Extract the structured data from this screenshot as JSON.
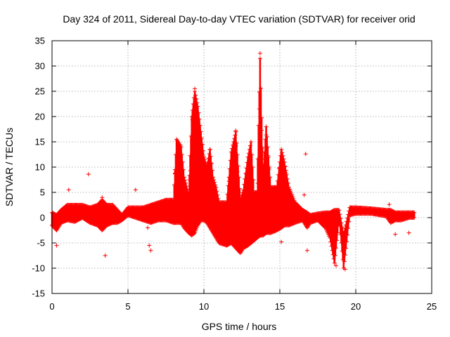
{
  "chart_data": {
    "type": "scatter",
    "title": "Day 324 of 2011, Sidereal Day-to-day VTEC variation (SDTVAR) for receiver orid",
    "xlabel": "GPS time / hours",
    "ylabel": "SDTVAR / TECUs",
    "xlim": [
      0,
      25
    ],
    "ylim": [
      -15,
      35
    ],
    "xticks": [
      0,
      5,
      10,
      15,
      20,
      25
    ],
    "yticks": [
      -15,
      -10,
      -5,
      0,
      5,
      10,
      15,
      20,
      25,
      30,
      35
    ],
    "grid": true,
    "marker": "+",
    "color": "#ff0000",
    "series": [
      {
        "name": "SDTVAR",
        "envelope": [
          {
            "x": 0.0,
            "lo": -1.5,
            "hi": 1.0
          },
          {
            "x": 0.3,
            "lo": -2.5,
            "hi": 0.5
          },
          {
            "x": 0.6,
            "lo": -1.0,
            "hi": 1.5
          },
          {
            "x": 1.0,
            "lo": -0.5,
            "hi": 2.5
          },
          {
            "x": 1.5,
            "lo": -0.8,
            "hi": 2.5
          },
          {
            "x": 2.0,
            "lo": 0.0,
            "hi": 2.5
          },
          {
            "x": 2.5,
            "lo": -1.0,
            "hi": 2.0
          },
          {
            "x": 3.0,
            "lo": -1.5,
            "hi": 2.5
          },
          {
            "x": 3.3,
            "lo": -2.5,
            "hi": 3.5
          },
          {
            "x": 3.6,
            "lo": -1.5,
            "hi": 2.5
          },
          {
            "x": 4.0,
            "lo": -1.0,
            "hi": 2.5
          },
          {
            "x": 4.3,
            "lo": -1.0,
            "hi": 1.5
          },
          {
            "x": 4.6,
            "lo": -0.5,
            "hi": 0.5
          },
          {
            "x": 5.0,
            "lo": 0.5,
            "hi": 2.0
          },
          {
            "x": 5.5,
            "lo": 0.0,
            "hi": 2.0
          },
          {
            "x": 6.0,
            "lo": -0.5,
            "hi": 2.0
          },
          {
            "x": 6.5,
            "lo": -1.0,
            "hi": 2.5
          },
          {
            "x": 7.0,
            "lo": -0.5,
            "hi": 3.0
          },
          {
            "x": 7.5,
            "lo": -0.5,
            "hi": 3.5
          },
          {
            "x": 8.0,
            "lo": -1.0,
            "hi": 3.5
          },
          {
            "x": 8.2,
            "lo": -1.0,
            "hi": 15.5
          },
          {
            "x": 8.5,
            "lo": -1.0,
            "hi": 14.0
          },
          {
            "x": 8.7,
            "lo": -2.0,
            "hi": 8.0
          },
          {
            "x": 9.0,
            "lo": -3.0,
            "hi": 4.5
          },
          {
            "x": 9.2,
            "lo": -3.5,
            "hi": 20.0
          },
          {
            "x": 9.4,
            "lo": -3.0,
            "hi": 25.0
          },
          {
            "x": 9.6,
            "lo": -1.5,
            "hi": 22.0
          },
          {
            "x": 9.8,
            "lo": -0.5,
            "hi": 17.0
          },
          {
            "x": 10.0,
            "lo": -0.5,
            "hi": 12.0
          },
          {
            "x": 10.2,
            "lo": -1.0,
            "hi": 10.0
          },
          {
            "x": 10.4,
            "lo": -2.0,
            "hi": 13.5
          },
          {
            "x": 10.6,
            "lo": -3.0,
            "hi": 8.0
          },
          {
            "x": 10.8,
            "lo": -4.0,
            "hi": 6.0
          },
          {
            "x": 11.0,
            "lo": -5.0,
            "hi": 3.0
          },
          {
            "x": 11.5,
            "lo": -5.5,
            "hi": 3.0
          },
          {
            "x": 11.8,
            "lo": -5.0,
            "hi": 13.0
          },
          {
            "x": 12.1,
            "lo": -6.0,
            "hi": 17.0
          },
          {
            "x": 12.4,
            "lo": -7.0,
            "hi": 3.5
          },
          {
            "x": 12.6,
            "lo": -6.0,
            "hi": 5.5
          },
          {
            "x": 12.9,
            "lo": -5.5,
            "hi": 12.0
          },
          {
            "x": 13.1,
            "lo": -5.0,
            "hi": 15.0
          },
          {
            "x": 13.3,
            "lo": -4.5,
            "hi": 5.0
          },
          {
            "x": 13.5,
            "lo": -4.0,
            "hi": 5.0
          },
          {
            "x": 13.7,
            "lo": -3.5,
            "hi": 31.5
          },
          {
            "x": 13.9,
            "lo": -3.5,
            "hi": 8.0
          },
          {
            "x": 14.1,
            "lo": -3.0,
            "hi": 18.0
          },
          {
            "x": 14.4,
            "lo": -3.0,
            "hi": 6.0
          },
          {
            "x": 14.8,
            "lo": -2.5,
            "hi": 6.0
          },
          {
            "x": 15.1,
            "lo": -2.0,
            "hi": 13.5
          },
          {
            "x": 15.3,
            "lo": -1.5,
            "hi": 11.0
          },
          {
            "x": 15.6,
            "lo": -1.5,
            "hi": 6.0
          },
          {
            "x": 16.0,
            "lo": -1.0,
            "hi": 3.0
          },
          {
            "x": 16.5,
            "lo": -0.5,
            "hi": 1.5
          },
          {
            "x": 16.8,
            "lo": -2.0,
            "hi": 1.0
          },
          {
            "x": 17.0,
            "lo": -1.0,
            "hi": 0.5
          },
          {
            "x": 17.5,
            "lo": -0.5,
            "hi": 0.8
          },
          {
            "x": 18.0,
            "lo": -2.0,
            "hi": 1.0
          },
          {
            "x": 18.3,
            "lo": -4.0,
            "hi": 1.0
          },
          {
            "x": 18.6,
            "lo": -9.0,
            "hi": 1.5
          },
          {
            "x": 18.9,
            "lo": 0.0,
            "hi": 1.5
          },
          {
            "x": 19.2,
            "lo": -10.0,
            "hi": -3.5
          },
          {
            "x": 19.6,
            "lo": 0.5,
            "hi": 2.0
          },
          {
            "x": 20.0,
            "lo": 0.8,
            "hi": 2.0
          },
          {
            "x": 21.0,
            "lo": 0.8,
            "hi": 1.8
          },
          {
            "x": 22.0,
            "lo": 0.3,
            "hi": 1.5
          },
          {
            "x": 22.3,
            "lo": -1.0,
            "hi": 1.5
          },
          {
            "x": 22.6,
            "lo": -0.5,
            "hi": 1.0
          },
          {
            "x": 23.0,
            "lo": -0.5,
            "hi": 1.0
          },
          {
            "x": 23.5,
            "lo": 0.0,
            "hi": 1.0
          },
          {
            "x": 23.9,
            "lo": 0.0,
            "hi": 1.0
          }
        ]
      }
    ],
    "outliers": [
      {
        "x": 0.3,
        "y": -5.5
      },
      {
        "x": 1.1,
        "y": 5.5
      },
      {
        "x": 2.4,
        "y": 8.6
      },
      {
        "x": 3.5,
        "y": -7.5
      },
      {
        "x": 3.3,
        "y": 4.0
      },
      {
        "x": 5.5,
        "y": 5.5
      },
      {
        "x": 6.5,
        "y": -6.5
      },
      {
        "x": 6.4,
        "y": -5.5
      },
      {
        "x": 6.3,
        "y": -2.0
      },
      {
        "x": 8.1,
        "y": 8.8
      },
      {
        "x": 9.3,
        "y": 7.0
      },
      {
        "x": 15.1,
        "y": -4.8
      },
      {
        "x": 16.7,
        "y": 12.6
      },
      {
        "x": 16.8,
        "y": -6.5
      },
      {
        "x": 16.6,
        "y": 4.5
      },
      {
        "x": 22.2,
        "y": 2.6
      },
      {
        "x": 22.6,
        "y": -3.3
      },
      {
        "x": 23.5,
        "y": -3.0
      },
      {
        "x": 19.3,
        "y": -10.2
      },
      {
        "x": 18.7,
        "y": -9.5
      },
      {
        "x": 13.7,
        "y": 32.5
      },
      {
        "x": 9.4,
        "y": 25.5
      },
      {
        "x": 10.4,
        "y": 13.5
      },
      {
        "x": 12.1,
        "y": 17.2
      }
    ]
  }
}
